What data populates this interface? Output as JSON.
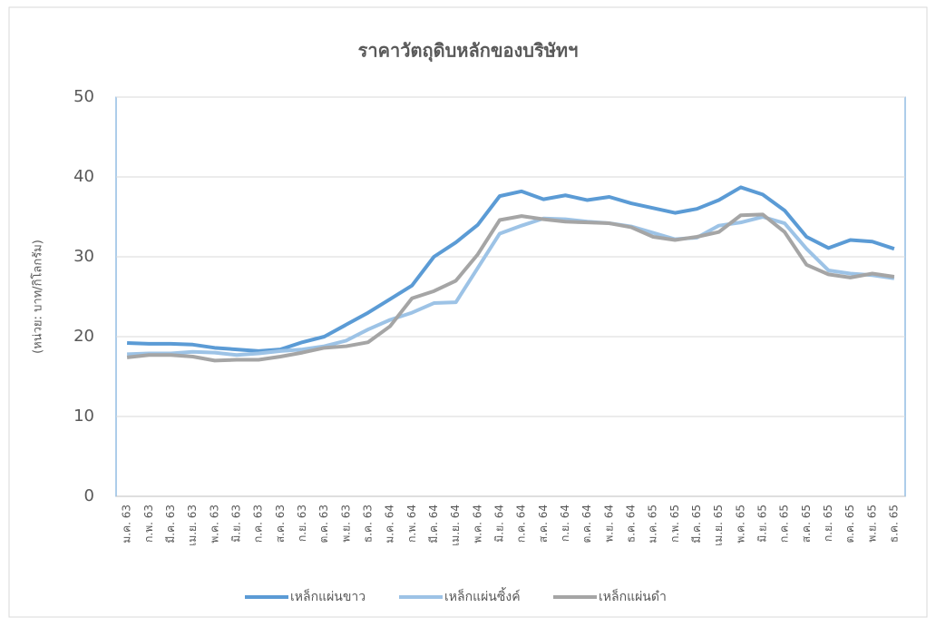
{
  "chart_data": {
    "type": "line",
    "title": "ราคาวัตถุดิบหลักของบริษัทฯ",
    "y_label": "(หน่วย: บาท/กิโลกรัม)",
    "categories": [
      "ม.ค. 63",
      "ก.พ. 63",
      "มี.ค. 63",
      "เม.ย. 63",
      "พ.ค. 63",
      "มิ.ย. 63",
      "ก.ค. 63",
      "ส.ค. 63",
      "ก.ย. 63",
      "ต.ค. 63",
      "พ.ย. 63",
      "ธ.ค. 63",
      "ม.ค. 64",
      "ก.พ. 64",
      "มี.ค. 64",
      "เม.ย. 64",
      "พ.ค. 64",
      "มิ.ย. 64",
      "ก.ค. 64",
      "ส.ค. 64",
      "ก.ย. 64",
      "ต.ค. 64",
      "พ.ย. 64",
      "ธ.ค. 64",
      "ม.ค. 65",
      "ก.พ. 65",
      "มี.ค. 65",
      "เม.ย. 65",
      "พ.ค. 65",
      "มิ.ย. 65",
      "ก.ค. 65",
      "ส.ค. 65",
      "ก.ย. 65",
      "ต.ค. 65",
      "พ.ย. 65",
      "ธ.ค. 65"
    ],
    "series": [
      {
        "name": "เหล็กแผ่นขาว",
        "color": "#5b9bd5",
        "values": [
          19.2,
          19.1,
          19.1,
          19.0,
          18.6,
          18.4,
          18.2,
          18.4,
          19.3,
          20.0,
          21.5,
          23.0,
          24.7,
          26.4,
          30.0,
          31.8,
          34.0,
          37.6,
          38.2,
          37.2,
          37.7,
          37.1,
          37.5,
          36.7,
          36.1,
          35.5,
          36.0,
          37.1,
          38.7,
          37.8,
          35.8,
          32.5,
          31.1,
          32.1,
          31.9,
          31.0
        ]
      },
      {
        "name": "เหล็กแผ่นซิ้งค์",
        "color": "#9dc3e6",
        "values": [
          17.8,
          17.9,
          17.9,
          18.1,
          18.0,
          17.7,
          17.9,
          18.2,
          18.4,
          18.8,
          19.5,
          20.9,
          22.1,
          23.0,
          24.2,
          24.3,
          28.6,
          32.9,
          33.9,
          34.8,
          34.7,
          34.4,
          34.2,
          33.8,
          33.0,
          32.2,
          32.4,
          33.9,
          34.3,
          35.0,
          34.2,
          31.0,
          28.3,
          27.9,
          27.7,
          27.3
        ]
      },
      {
        "name": "เหล็กแผ่นดำ",
        "color": "#a5a5a5",
        "values": [
          17.4,
          17.7,
          17.7,
          17.5,
          17.0,
          17.1,
          17.1,
          17.5,
          18.0,
          18.6,
          18.8,
          19.3,
          21.3,
          24.8,
          25.7,
          27.0,
          30.3,
          34.6,
          35.1,
          34.7,
          34.4,
          34.3,
          34.2,
          33.7,
          32.5,
          32.1,
          32.5,
          33.1,
          35.2,
          35.3,
          33.1,
          29.0,
          27.8,
          27.4,
          27.9,
          27.5
        ]
      }
    ],
    "ylim": [
      0,
      50
    ],
    "yticks": [
      0,
      10,
      20,
      30,
      40,
      50
    ],
    "grid": true,
    "legend": "bottom"
  }
}
